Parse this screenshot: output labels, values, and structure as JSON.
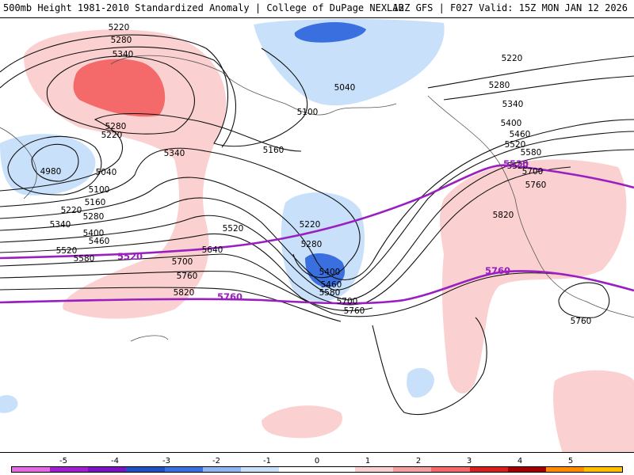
{
  "header": {
    "title_left": "500mb Height 1981-2010 Standardized Anomaly | College of DuPage NEXLAB",
    "title_right": "12Z GFS | F027 Valid: 15Z MON JAN 12 2026"
  },
  "map": {
    "contour_labels": [
      "5220",
      "5280",
      "5340",
      "5280",
      "5220",
      "5340",
      "5160",
      "5100",
      "5040",
      "5040",
      "4980",
      "5100",
      "5160",
      "5220",
      "5280",
      "5340",
      "5400",
      "5460",
      "5520",
      "5580",
      "5520",
      "5640",
      "5700",
      "5760",
      "5820",
      "5760",
      "5220",
      "5280",
      "5400",
      "5460",
      "5580",
      "5700",
      "5760",
      "5220",
      "5280",
      "5340",
      "5400",
      "5460",
      "5520",
      "5580",
      "5520",
      "5700",
      "5760",
      "5820",
      "5760",
      "5760"
    ],
    "highlight_labels": {
      "l5520_west": "5520",
      "l5760_west": "5760",
      "l5520_east": "5520",
      "l5760_east": "5760"
    },
    "anomaly_colors": {
      "pos1": "#fbd0d0",
      "pos2": "#f46a6a",
      "neg1": "#c8e0fa",
      "neg2": "#3a6fe0"
    },
    "highlight_color": "#9a1fc0"
  },
  "colorbar": {
    "labels": [
      "-5",
      "-4",
      "-3",
      "-2",
      "-1",
      "0",
      "1",
      "2",
      "3",
      "4",
      "5"
    ],
    "colors": [
      "#e36be0",
      "#a020d0",
      "#7a14c0",
      "#2050c0",
      "#3a6fe0",
      "#8fb6f0",
      "#c8e0fa",
      "#ffffff",
      "#ffffff",
      "#fbd0d0",
      "#f5a0a0",
      "#f46a6a",
      "#d42020",
      "#a00000",
      "#ff8c00",
      "#ffc000"
    ]
  }
}
